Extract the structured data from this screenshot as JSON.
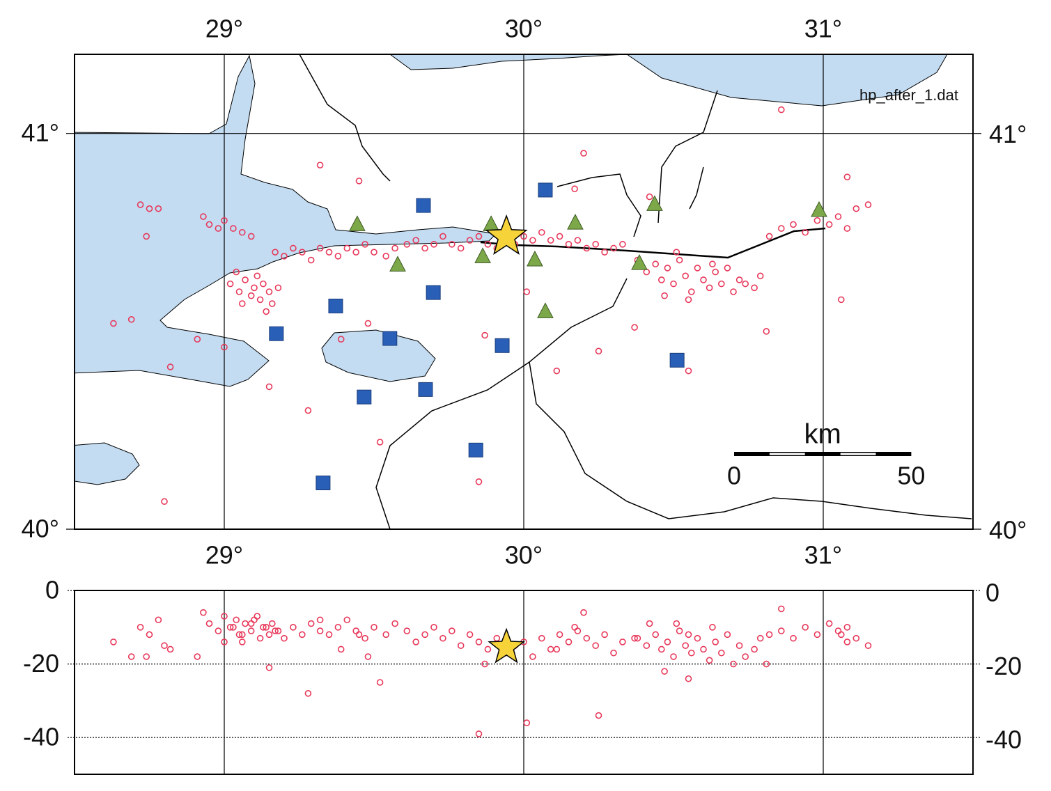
{
  "map": {
    "label": "hp_after_1.dat",
    "xlim": [
      28.5,
      31.5
    ],
    "ylim": [
      40,
      41.2
    ],
    "xticks": [
      {
        "value": 29,
        "label": "29°"
      },
      {
        "value": 30,
        "label": "30°"
      },
      {
        "value": 31,
        "label": "31°"
      }
    ],
    "yticks": [
      {
        "value": 40,
        "label": "40°"
      },
      {
        "value": 41,
        "label": "41°"
      }
    ],
    "sea_color": "#c3dcf2",
    "event_color": "#e8385a",
    "station_color": "#2a5fb8",
    "triangle_color": "#7da84a",
    "star_color": "#f7d33a",
    "mainshock": [
      29.942,
      40.739,
      -15.5
    ],
    "stations": [
      [
        30.072,
        40.857
      ],
      [
        29.665,
        40.818
      ],
      [
        29.698,
        40.598
      ],
      [
        29.372,
        40.564
      ],
      [
        29.174,
        40.494
      ],
      [
        29.553,
        40.482
      ],
      [
        29.928,
        40.464
      ],
      [
        30.512,
        40.427
      ],
      [
        29.672,
        40.353
      ],
      [
        29.467,
        40.334
      ],
      [
        29.84,
        40.2
      ],
      [
        29.33,
        40.117
      ]
    ],
    "triangles": [
      [
        29.444,
        40.77
      ],
      [
        29.579,
        40.668
      ],
      [
        29.891,
        40.77
      ],
      [
        29.863,
        40.689
      ],
      [
        30.037,
        40.681
      ],
      [
        30.172,
        40.774
      ],
      [
        30.072,
        40.55
      ],
      [
        30.437,
        40.821
      ],
      [
        30.386,
        40.672
      ],
      [
        30.986,
        40.806
      ]
    ],
    "events": [
      [
        29.02,
        40.62,
        -10
      ],
      [
        29.05,
        40.6,
        -12
      ],
      [
        29.07,
        40.63,
        -9
      ],
      [
        29.09,
        40.59,
        -11
      ],
      [
        29.1,
        40.61,
        -8
      ],
      [
        29.12,
        40.58,
        -13
      ],
      [
        29.13,
        40.62,
        -10
      ],
      [
        29.15,
        40.6,
        -12
      ],
      [
        29.16,
        40.57,
        -9
      ],
      [
        29.18,
        40.61,
        -11
      ],
      [
        29.06,
        40.57,
        -14
      ],
      [
        29.11,
        40.64,
        -7
      ],
      [
        29.14,
        40.55,
        -10
      ],
      [
        29.04,
        40.65,
        -8
      ],
      [
        28.72,
        40.82,
        -10
      ],
      [
        28.75,
        40.81,
        -12
      ],
      [
        28.78,
        40.81,
        -8
      ],
      [
        28.74,
        40.74,
        -18
      ],
      [
        28.63,
        40.52,
        -14
      ],
      [
        28.69,
        40.53,
        -18
      ],
      [
        28.82,
        40.41,
        -16
      ],
      [
        28.93,
        40.79,
        -6
      ],
      [
        28.95,
        40.77,
        -9
      ],
      [
        28.98,
        40.76,
        -11
      ],
      [
        29.0,
        40.78,
        -7
      ],
      [
        29.03,
        40.76,
        -10
      ],
      [
        29.06,
        40.75,
        -12
      ],
      [
        29.09,
        40.74,
        -9
      ],
      [
        29.17,
        40.7,
        -11
      ],
      [
        29.2,
        40.69,
        -13
      ],
      [
        29.23,
        40.71,
        -10
      ],
      [
        29.26,
        40.7,
        -12
      ],
      [
        29.29,
        40.68,
        -9
      ],
      [
        29.32,
        40.71,
        -11
      ],
      [
        29.35,
        40.7,
        -12
      ],
      [
        29.38,
        40.69,
        -10
      ],
      [
        29.41,
        40.71,
        -8
      ],
      [
        29.44,
        40.7,
        -11
      ],
      [
        29.47,
        40.72,
        -13
      ],
      [
        29.5,
        40.7,
        -10
      ],
      [
        29.54,
        40.69,
        -12
      ],
      [
        29.57,
        40.71,
        -9
      ],
      [
        29.61,
        40.72,
        -11
      ],
      [
        29.64,
        40.73,
        -14
      ],
      [
        29.67,
        40.71,
        -12
      ],
      [
        29.7,
        40.72,
        -10
      ],
      [
        29.73,
        40.74,
        -13
      ],
      [
        29.76,
        40.72,
        -11
      ],
      [
        29.79,
        40.71,
        -15
      ],
      [
        29.82,
        40.73,
        -12
      ],
      [
        29.85,
        40.74,
        -14
      ],
      [
        29.88,
        40.72,
        -16
      ],
      [
        29.91,
        40.71,
        -13
      ],
      [
        29.94,
        40.73,
        -17
      ],
      [
        29.97,
        40.72,
        -15
      ],
      [
        30.0,
        40.74,
        -14
      ],
      [
        30.03,
        40.73,
        -18
      ],
      [
        30.06,
        40.75,
        -13
      ],
      [
        30.09,
        40.73,
        -16
      ],
      [
        30.12,
        40.74,
        -12
      ],
      [
        30.15,
        40.72,
        -14
      ],
      [
        30.18,
        40.73,
        -11
      ],
      [
        30.21,
        40.71,
        -13
      ],
      [
        30.24,
        40.72,
        -15
      ],
      [
        30.27,
        40.7,
        -12
      ],
      [
        30.3,
        40.71,
        -17
      ],
      [
        30.33,
        40.72,
        -14
      ],
      [
        30.38,
        40.68,
        -13
      ],
      [
        30.41,
        40.65,
        -15
      ],
      [
        30.44,
        40.67,
        -12
      ],
      [
        30.46,
        40.63,
        -16
      ],
      [
        30.48,
        40.66,
        -14
      ],
      [
        30.5,
        40.62,
        -18
      ],
      [
        30.52,
        40.68,
        -11
      ],
      [
        30.54,
        40.64,
        -15
      ],
      [
        30.56,
        40.6,
        -17
      ],
      [
        30.58,
        40.66,
        -13
      ],
      [
        30.6,
        40.63,
        -16
      ],
      [
        30.62,
        40.61,
        -19
      ],
      [
        30.64,
        40.65,
        -14
      ],
      [
        30.66,
        40.62,
        -17
      ],
      [
        30.68,
        40.66,
        -12
      ],
      [
        30.7,
        40.6,
        -20
      ],
      [
        30.72,
        40.63,
        -15
      ],
      [
        30.74,
        40.62,
        -18
      ],
      [
        30.77,
        40.61,
        -16
      ],
      [
        30.79,
        40.64,
        -13
      ],
      [
        30.47,
        40.59,
        -22
      ],
      [
        30.55,
        40.58,
        -24
      ],
      [
        30.63,
        40.67,
        -10
      ],
      [
        30.51,
        40.7,
        -9
      ],
      [
        30.82,
        40.74,
        -12
      ],
      [
        30.86,
        40.76,
        -11
      ],
      [
        30.9,
        40.77,
        -13
      ],
      [
        30.94,
        40.75,
        -10
      ],
      [
        30.98,
        40.78,
        -12
      ],
      [
        31.02,
        40.77,
        -9
      ],
      [
        31.05,
        40.79,
        -11
      ],
      [
        31.08,
        40.76,
        -14
      ],
      [
        31.11,
        40.81,
        -13
      ],
      [
        31.15,
        40.82,
        -15
      ],
      [
        31.08,
        40.89,
        -10
      ],
      [
        30.86,
        41.06,
        -5
      ],
      [
        29.32,
        40.92,
        -8
      ],
      [
        29.45,
        40.88,
        -12
      ],
      [
        30.17,
        40.86,
        -10
      ],
      [
        30.42,
        40.84,
        -9
      ],
      [
        30.2,
        40.95,
        -6
      ],
      [
        29.0,
        40.46,
        -14
      ],
      [
        28.91,
        40.48,
        -18
      ],
      [
        29.15,
        40.36,
        -21
      ],
      [
        29.28,
        40.3,
        -28
      ],
      [
        29.39,
        40.48,
        -16
      ],
      [
        29.48,
        40.52,
        -18
      ],
      [
        29.85,
        40.12,
        -39
      ],
      [
        28.8,
        40.07,
        -15
      ],
      [
        30.37,
        40.51,
        -13
      ],
      [
        30.55,
        40.4,
        -12
      ],
      [
        30.11,
        40.4,
        -16
      ],
      [
        29.87,
        40.49,
        -20
      ],
      [
        30.25,
        40.45,
        -34
      ],
      [
        30.81,
        40.5,
        -20
      ],
      [
        31.06,
        40.58,
        -12
      ],
      [
        29.52,
        40.22,
        -25
      ],
      [
        30.01,
        40.6,
        -36
      ]
    ],
    "scale_bar": {
      "title": "km",
      "ticks": [
        0,
        50
      ]
    }
  },
  "depth": {
    "ylim": [
      -50,
      0
    ],
    "yticks": [
      0,
      -20,
      -40
    ]
  }
}
